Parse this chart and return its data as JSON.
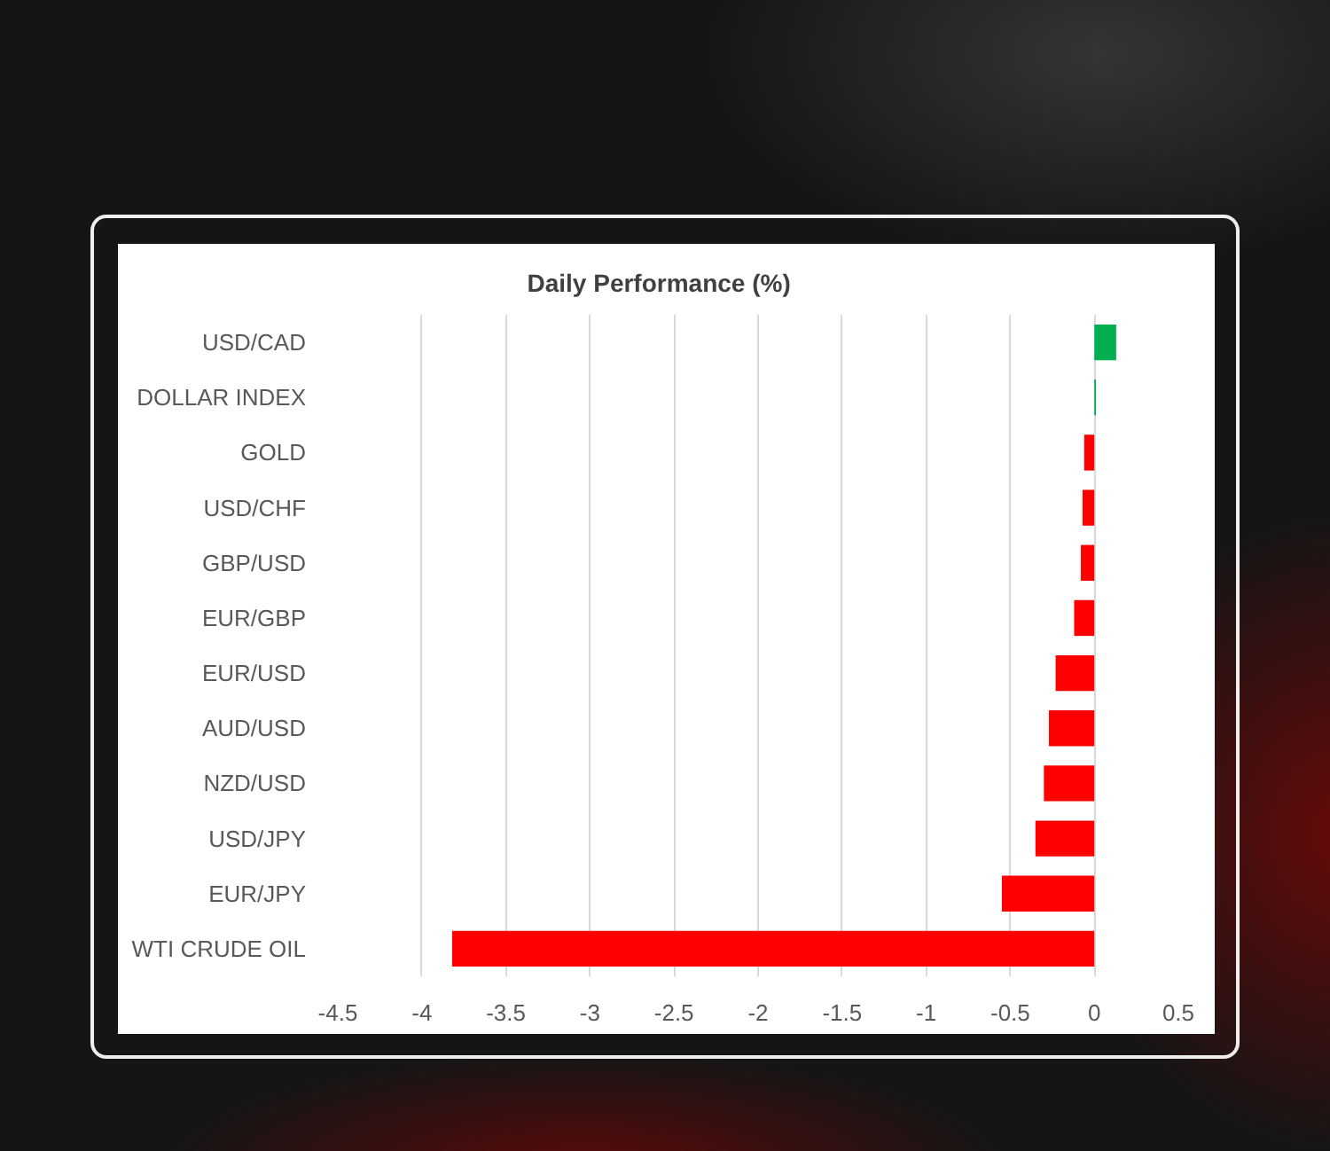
{
  "chart_data": {
    "type": "bar",
    "orientation": "horizontal",
    "title": "Daily Performance (%)",
    "categories": [
      "USD/CAD",
      "DOLLAR INDEX",
      "GOLD",
      "USD/CHF",
      "GBP/USD",
      "EUR/GBP",
      "EUR/USD",
      "AUD/USD",
      "NZD/USD",
      "USD/JPY",
      "EUR/JPY",
      "WTI CRUDE OIL"
    ],
    "values": [
      0.13,
      0.01,
      -0.06,
      -0.07,
      -0.08,
      -0.12,
      -0.23,
      -0.27,
      -0.3,
      -0.35,
      -0.55,
      -3.82
    ],
    "colors": [
      "#00b050",
      "#00b050",
      "#ff0000",
      "#ff0000",
      "#ff0000",
      "#ff0000",
      "#ff0000",
      "#ff0000",
      "#ff0000",
      "#ff0000",
      "#ff0000",
      "#ff0000"
    ],
    "xlim": [
      -4.5,
      0.5
    ],
    "xticks": [
      -4.5,
      -4,
      -3.5,
      -3,
      -2.5,
      -2,
      -1.5,
      -1,
      -0.5,
      0,
      0.5
    ],
    "grid": "x"
  }
}
